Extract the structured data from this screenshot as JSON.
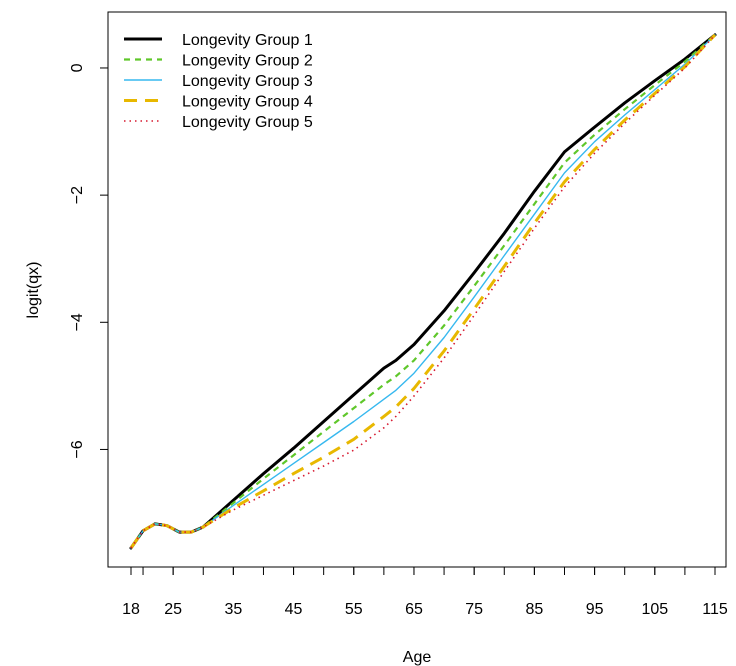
{
  "chart_data": {
    "type": "line",
    "xlabel": "Age",
    "ylabel": "logit(qx)",
    "xlim": [
      18,
      115
    ],
    "ylim": [
      -7.55,
      0.55
    ],
    "x_ticks": [
      18,
      25,
      35,
      45,
      55,
      65,
      75,
      85,
      95,
      105,
      115
    ],
    "y_ticks": [
      0,
      -2,
      -4,
      -6
    ],
    "legend_position": "top-left",
    "grid": false,
    "x": [
      18,
      20,
      22,
      24,
      26,
      28,
      30,
      35,
      40,
      45,
      50,
      55,
      60,
      62,
      65,
      70,
      75,
      80,
      85,
      90,
      95,
      100,
      105,
      110,
      115
    ],
    "series": [
      {
        "name": "Longevity Group 1",
        "color": "#000000",
        "dash": "solid",
        "width": 3,
        "values": [
          -7.55,
          -7.28,
          -7.17,
          -7.2,
          -7.3,
          -7.3,
          -7.22,
          -6.8,
          -6.38,
          -5.98,
          -5.56,
          -5.14,
          -4.72,
          -4.6,
          -4.35,
          -3.82,
          -3.22,
          -2.6,
          -1.94,
          -1.32,
          -0.93,
          -0.55,
          -0.2,
          0.14,
          0.52
        ]
      },
      {
        "name": "Longevity Group 2",
        "color": "#5fc72a",
        "dash": "6,5",
        "width": 2.2,
        "values": [
          -7.55,
          -7.28,
          -7.17,
          -7.2,
          -7.3,
          -7.3,
          -7.22,
          -6.84,
          -6.46,
          -6.09,
          -5.72,
          -5.35,
          -4.98,
          -4.85,
          -4.6,
          -4.05,
          -3.43,
          -2.79,
          -2.14,
          -1.49,
          -1.05,
          -0.65,
          -0.27,
          0.1,
          0.52
        ]
      },
      {
        "name": "Longevity Group 3",
        "color": "#36b8ef",
        "dash": "solid",
        "width": 1.4,
        "values": [
          -7.55,
          -7.28,
          -7.17,
          -7.2,
          -7.3,
          -7.3,
          -7.22,
          -6.88,
          -6.55,
          -6.22,
          -5.89,
          -5.56,
          -5.21,
          -5.07,
          -4.8,
          -4.24,
          -3.6,
          -2.95,
          -2.3,
          -1.65,
          -1.16,
          -0.74,
          -0.34,
          0.06,
          0.52
        ]
      },
      {
        "name": "Longevity Group 4",
        "color": "#e8b800",
        "dash": "13,8",
        "width": 3,
        "values": [
          -7.55,
          -7.28,
          -7.17,
          -7.2,
          -7.3,
          -7.3,
          -7.22,
          -6.92,
          -6.65,
          -6.38,
          -6.12,
          -5.84,
          -5.48,
          -5.33,
          -5.04,
          -4.45,
          -3.79,
          -3.12,
          -2.44,
          -1.79,
          -1.28,
          -0.82,
          -0.4,
          0.02,
          0.52
        ]
      },
      {
        "name": "Longevity Group 5",
        "color": "#d6182f",
        "dash": "1.5,4",
        "width": 1.6,
        "values": [
          -7.55,
          -7.28,
          -7.17,
          -7.2,
          -7.3,
          -7.3,
          -7.22,
          -6.95,
          -6.72,
          -6.49,
          -6.26,
          -6.01,
          -5.66,
          -5.48,
          -5.16,
          -4.56,
          -3.89,
          -3.2,
          -2.52,
          -1.87,
          -1.34,
          -0.87,
          -0.43,
          0.0,
          0.52
        ]
      }
    ]
  }
}
